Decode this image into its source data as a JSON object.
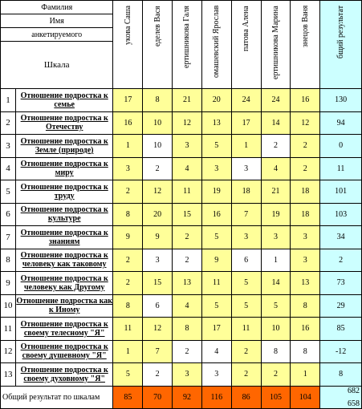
{
  "header": {
    "surname": "Фамилия",
    "name": "Имя",
    "respondent": "анкетируемого",
    "scale": "Шкала"
  },
  "students": [
    "укова Саша",
    "еделев Вася",
    "ертишникова Галя",
    "омашевский Ярослав",
    "патова Алена",
    "ертишникова Марина",
    "знецов Ваня"
  ],
  "result_header": "бщий результат",
  "rows": [
    {
      "n": "1",
      "label": "Отношение подростка к семье",
      "values": [
        "17",
        "8",
        "21",
        "20",
        "24",
        "24",
        "16"
      ],
      "styles": [
        "y",
        "y",
        "y",
        "y",
        "y",
        "y",
        "y"
      ],
      "total": "130"
    },
    {
      "n": "2",
      "label": "Отношение подростка к Отечеству",
      "values": [
        "16",
        "10",
        "12",
        "13",
        "17",
        "14",
        "12"
      ],
      "styles": [
        "y",
        "y",
        "y",
        "y",
        "y",
        "y",
        "y"
      ],
      "total": "94"
    },
    {
      "n": "3",
      "label": "Отношение подростка к Земле (природе)",
      "values": [
        "1",
        "10",
        "3",
        "5",
        "1",
        "2",
        "2"
      ],
      "styles": [
        "y",
        "w",
        "y",
        "y",
        "y",
        "w",
        "y"
      ],
      "total": "0"
    },
    {
      "n": "4",
      "label": "Отношение подростка к миру",
      "values": [
        "3",
        "2",
        "4",
        "3",
        "3",
        "4",
        "2"
      ],
      "styles": [
        "y",
        "w",
        "y",
        "y",
        "w",
        "y",
        "y"
      ],
      "total": "11"
    },
    {
      "n": "5",
      "label": "Отношение подростка к труду",
      "values": [
        "2",
        "12",
        "11",
        "19",
        "18",
        "21",
        "18"
      ],
      "styles": [
        "y",
        "y",
        "y",
        "y",
        "y",
        "y",
        "y"
      ],
      "total": "101"
    },
    {
      "n": "6",
      "label": "Отношение подростка к культуре",
      "values": [
        "8",
        "20",
        "15",
        "16",
        "7",
        "19",
        "18"
      ],
      "styles": [
        "y",
        "y",
        "y",
        "y",
        "y",
        "y",
        "y"
      ],
      "total": "103"
    },
    {
      "n": "7",
      "label": "Отношение подростка к знаниям",
      "values": [
        "9",
        "9",
        "2",
        "5",
        "3",
        "3",
        "3"
      ],
      "styles": [
        "y",
        "y",
        "y",
        "y",
        "y",
        "y",
        "y"
      ],
      "total": "34"
    },
    {
      "n": "8",
      "label": "Отношение подростка к человеку как таковому",
      "values": [
        "2",
        "3",
        "2",
        "9",
        "6",
        "1",
        "3"
      ],
      "styles": [
        "y",
        "w",
        "w",
        "y",
        "w",
        "w",
        "y"
      ],
      "total": "2"
    },
    {
      "n": "9",
      "label": "Отношение подростка к человеку как Другому",
      "values": [
        "2",
        "15",
        "13",
        "11",
        "5",
        "14",
        "13"
      ],
      "styles": [
        "y",
        "y",
        "y",
        "y",
        "y",
        "y",
        "y"
      ],
      "total": "73"
    },
    {
      "n": "10",
      "label": "Отношение подростка как к Иному",
      "values": [
        "8",
        "6",
        "4",
        "5",
        "5",
        "5",
        "8"
      ],
      "styles": [
        "y",
        "w",
        "y",
        "y",
        "y",
        "y",
        "y"
      ],
      "total": "29"
    },
    {
      "n": "11",
      "label": "Отношение подростка к своему телесному \"Я\"",
      "values": [
        "11",
        "12",
        "8",
        "17",
        "11",
        "10",
        "16"
      ],
      "styles": [
        "y",
        "y",
        "y",
        "y",
        "y",
        "y",
        "y"
      ],
      "total": "85"
    },
    {
      "n": "12",
      "label": "Отношение подростка к своему душевному \"Я\"",
      "values": [
        "1",
        "7",
        "2",
        "4",
        "2",
        "8",
        "8"
      ],
      "styles": [
        "y",
        "y",
        "w",
        "w",
        "y",
        "w",
        "w"
      ],
      "total": "-12"
    },
    {
      "n": "13",
      "label": "Отношение подростка к своему духовному \"Я\"",
      "values": [
        "5",
        "2",
        "3",
        "3",
        "2",
        "2",
        "1"
      ],
      "styles": [
        "y",
        "w",
        "y",
        "w",
        "y",
        "y",
        "y"
      ],
      "total": "8"
    }
  ],
  "totals": {
    "label": "Общий результат по шкалам",
    "values": [
      "85",
      "70",
      "92",
      "116",
      "86",
      "105",
      "104"
    ],
    "grand_a": "682",
    "grand_b": "658"
  },
  "colors": {
    "yellow": "#ffff99",
    "cyan": "#ccffff",
    "orange": "#ff6600"
  }
}
